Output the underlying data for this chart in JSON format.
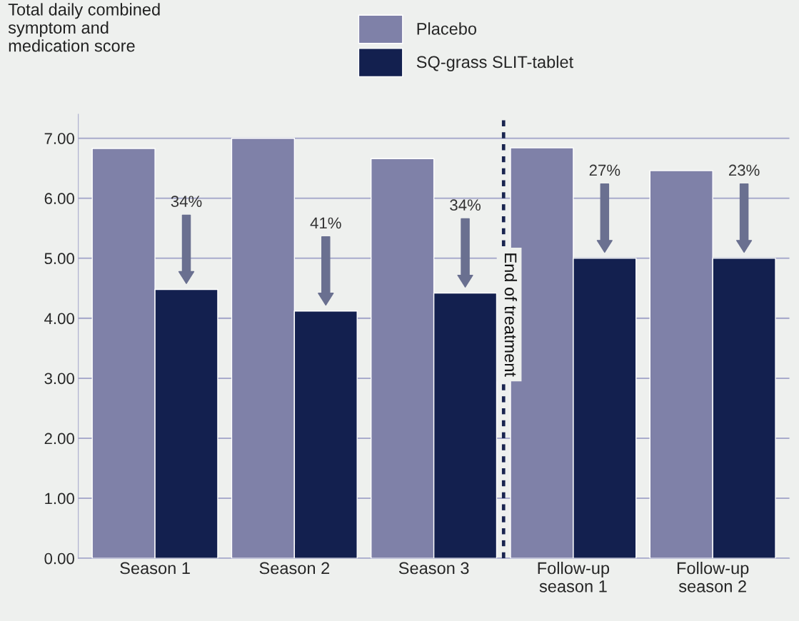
{
  "chart_data": {
    "type": "bar",
    "ylabel": "Total daily combined\nsymptom and\nmedication score",
    "categories": [
      "Season 1",
      "Season 2",
      "Season 3",
      "Follow-up\nseason 1",
      "Follow-up\nseason 2"
    ],
    "series": [
      {
        "name": "Placebo",
        "color": "#7f81a8",
        "values": [
          6.83,
          7.0,
          6.66,
          6.84,
          6.46
        ]
      },
      {
        "name": "SQ-grass SLIT-tablet",
        "color": "#13204f",
        "values": [
          4.48,
          4.12,
          4.42,
          5.0,
          5.0
        ]
      }
    ],
    "ylim": [
      0,
      7.4
    ],
    "yticks": [
      {
        "value": 0,
        "label": "0.00"
      },
      {
        "value": 1,
        "label": "1.00"
      },
      {
        "value": 2,
        "label": "2.00"
      },
      {
        "value": 3,
        "label": "3.00"
      },
      {
        "value": 4,
        "label": "4.00"
      },
      {
        "value": 5,
        "label": "5.00"
      },
      {
        "value": 6,
        "label": "6.00"
      },
      {
        "value": 7,
        "label": "7.00"
      }
    ],
    "grid": "y",
    "legend": "top",
    "annotations": [
      "34%",
      "41%",
      "34%",
      "27%",
      "23%",
      "End of treatment"
    ]
  }
}
